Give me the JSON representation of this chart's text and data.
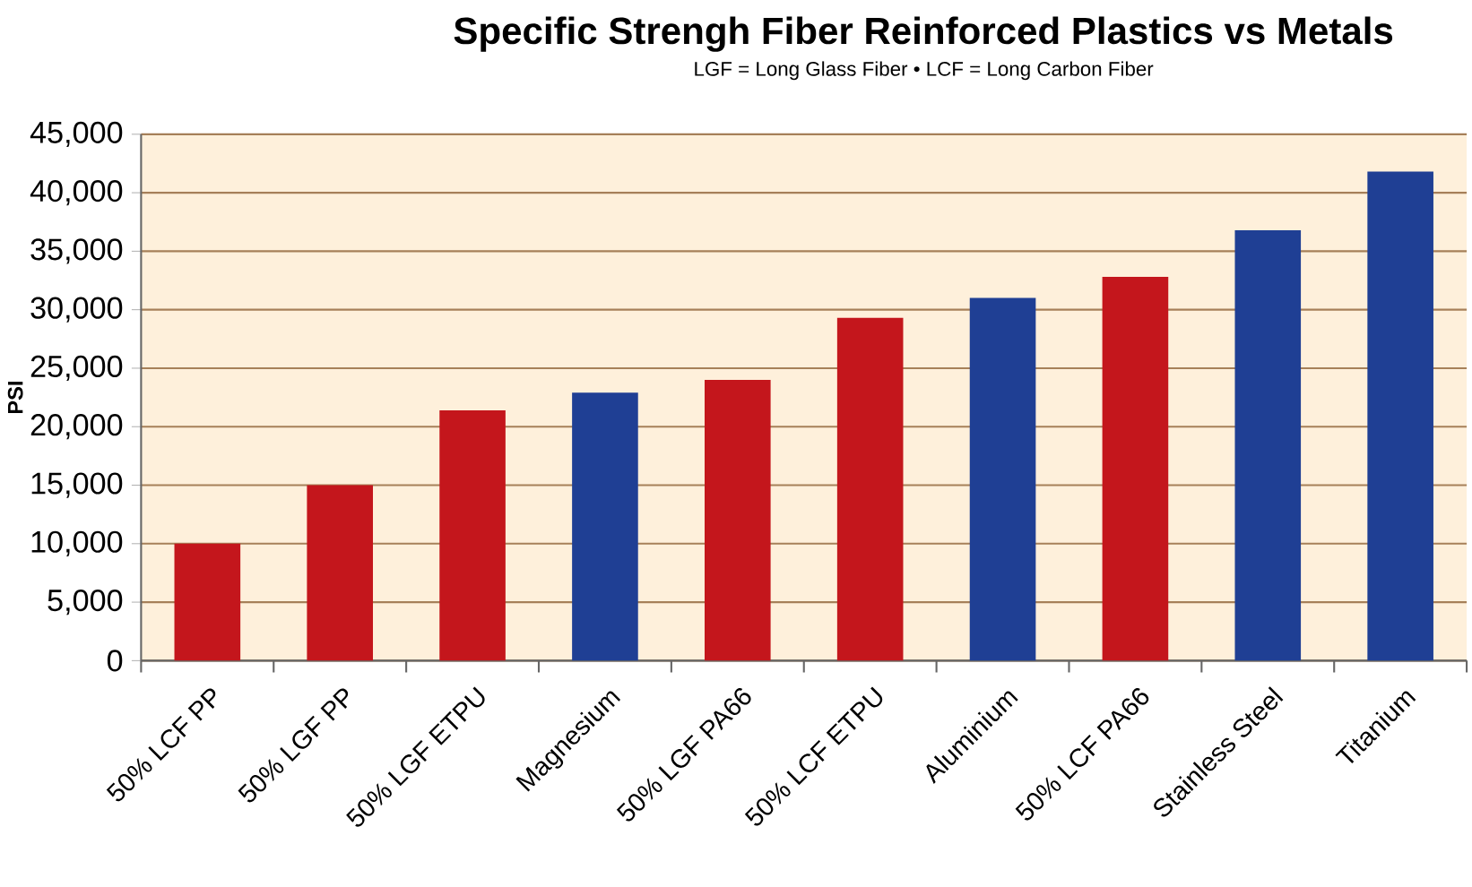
{
  "chart_data": {
    "type": "bar",
    "title": "Specific Strengh Fiber Reinforced Plastics vs Metals",
    "subtitle": "LGF = Long Glass Fiber • LCF = Long Carbon Fiber",
    "ylabel": "PSI",
    "categories": [
      "50% LCF PP",
      "50% LGF PP",
      "50% LGF ETPU",
      "Magnesium",
      "50% LGF PA66",
      "50% LCF ETPU",
      "Aluminium",
      "50% LCF PA66",
      "Stainless Steel",
      "Titanium"
    ],
    "values": [
      10000,
      15000,
      21400,
      22900,
      24000,
      29300,
      31000,
      32800,
      36800,
      41800
    ],
    "colors": [
      "#c4161c",
      "#c4161c",
      "#c4161c",
      "#1f3f94",
      "#c4161c",
      "#c4161c",
      "#1f3f94",
      "#c4161c",
      "#1f3f94",
      "#1f3f94"
    ],
    "ylim": [
      0,
      45000
    ],
    "yticks": [
      {
        "value": 0,
        "label": "0"
      },
      {
        "value": 5000,
        "label": "5,000"
      },
      {
        "value": 10000,
        "label": "10,000"
      },
      {
        "value": 15000,
        "label": "15,000"
      },
      {
        "value": 20000,
        "label": "20,000"
      },
      {
        "value": 25000,
        "label": "25,000"
      },
      {
        "value": 30000,
        "label": "30,000"
      },
      {
        "value": 35000,
        "label": "35,000"
      },
      {
        "value": 40000,
        "label": "40,000"
      },
      {
        "value": 45000,
        "label": "45,000"
      }
    ],
    "grid": "y"
  }
}
